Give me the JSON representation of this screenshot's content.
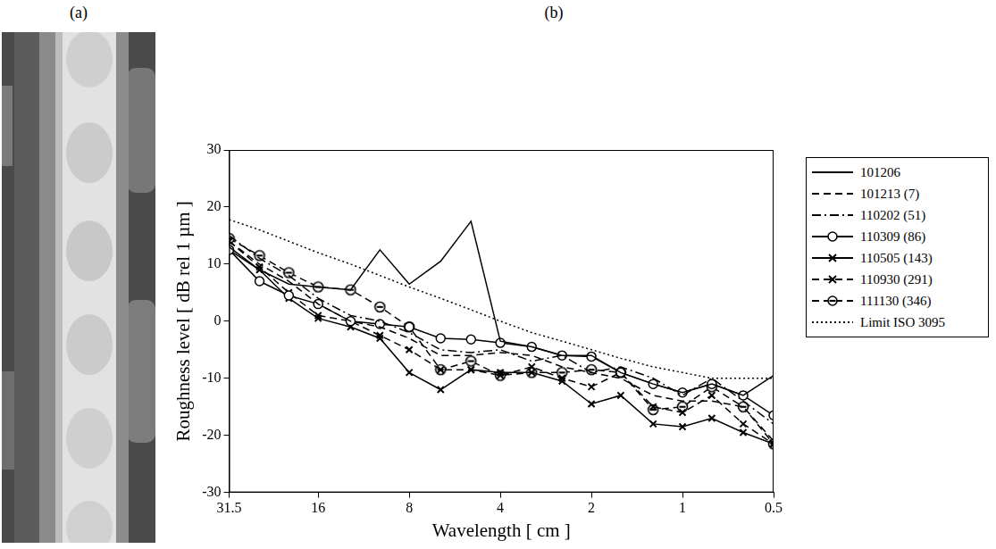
{
  "panel_labels": [
    "(a)",
    "(b)"
  ],
  "chart_data": {
    "type": "line",
    "x_label": "Wavelength [ cm ]",
    "y_label": "Roughness level [ dB rel 1 µm ]",
    "log": "x",
    "grid": false,
    "legend": "right",
    "x": [
      31.5,
      25,
      20,
      16,
      12.5,
      10,
      8,
      6.3,
      5,
      4,
      3.15,
      2.5,
      2,
      1.6,
      1.25,
      1,
      0.8,
      0.63,
      0.5
    ],
    "xlim": [
      31.5,
      0.5
    ],
    "xticks": [
      31.5,
      16,
      8,
      4,
      2,
      1,
      0.5
    ],
    "ylim": [
      -30,
      30
    ],
    "yticks": [
      -30,
      -20,
      -10,
      0,
      10,
      20,
      30
    ],
    "series": [
      {
        "name": "101206",
        "color": "#000000",
        "line_style": "solid",
        "marker": "none",
        "values": [
          13,
          9,
          6.5,
          6,
          5.5,
          12.5,
          6.5,
          10.5,
          17.5,
          -3.5,
          -4.5,
          -6,
          -6,
          -9,
          -11,
          -12.5,
          -11,
          -13,
          -9.5
        ]
      },
      {
        "name": "101213 (7)",
        "color": "#000000",
        "line_style": "dashed",
        "marker": "none",
        "values": [
          14,
          10,
          7,
          3,
          0,
          -1,
          -3,
          -6,
          -6,
          -5.5,
          -6,
          -8,
          -9,
          -10,
          -13,
          -14,
          -14,
          -15,
          -21
        ]
      },
      {
        "name": "110202 (51)",
        "color": "#000000",
        "line_style": "dashdot",
        "marker": "none",
        "values": [
          15,
          11,
          8,
          4,
          1,
          0,
          -2,
          -5,
          -5.5,
          -5,
          -7,
          -6,
          -9,
          -8,
          -10,
          -13,
          -10,
          -14,
          -18
        ]
      },
      {
        "name": "110309 (86)",
        "color": "#000000",
        "line_style": "solid",
        "marker": "circle",
        "values": [
          12.5,
          7,
          4.5,
          3,
          0,
          -0.5,
          -1,
          -3,
          -3.2,
          -3.8,
          -4.5,
          -6,
          -6.2,
          -9,
          -11,
          -12.5,
          -11,
          -13,
          -16.5
        ]
      },
      {
        "name": "110505 (143)",
        "color": "#000000",
        "line_style": "solid",
        "marker": "x",
        "values": [
          12.5,
          9,
          4,
          0.5,
          -1,
          -3,
          -9,
          -12,
          -8.5,
          -9,
          -9,
          -10.5,
          -14.5,
          -13,
          -18,
          -18.5,
          -17,
          -19.5,
          -21.5
        ]
      },
      {
        "name": "110930 (291)",
        "color": "#000000",
        "line_style": "dashed",
        "marker": "x",
        "values": [
          14,
          9.5,
          5,
          1,
          0,
          -2.5,
          -5,
          -8.5,
          -8.5,
          -9.5,
          -8,
          -10,
          -11.5,
          -9,
          -15,
          -16,
          -13,
          -18,
          -21.5
        ]
      },
      {
        "name": "111130 (346)",
        "color": "#000000",
        "line_style": "dashed",
        "marker": "circle_line",
        "values": [
          14.5,
          11.5,
          8.5,
          6,
          5.5,
          2.5,
          -1,
          -8.5,
          -7,
          -9.5,
          -9,
          -9,
          -8.5,
          -9,
          -15.5,
          -15,
          -11.5,
          -15,
          -21.5
        ]
      },
      {
        "name": "Limit ISO 3095",
        "color": "#000000",
        "line_style": "dotted",
        "marker": "none",
        "values": [
          17.8,
          16,
          14,
          12,
          10,
          8,
          6,
          4,
          2,
          0,
          -2,
          -3.5,
          -5,
          -6.5,
          -8,
          -9,
          -10,
          -10,
          -10
        ]
      }
    ]
  }
}
